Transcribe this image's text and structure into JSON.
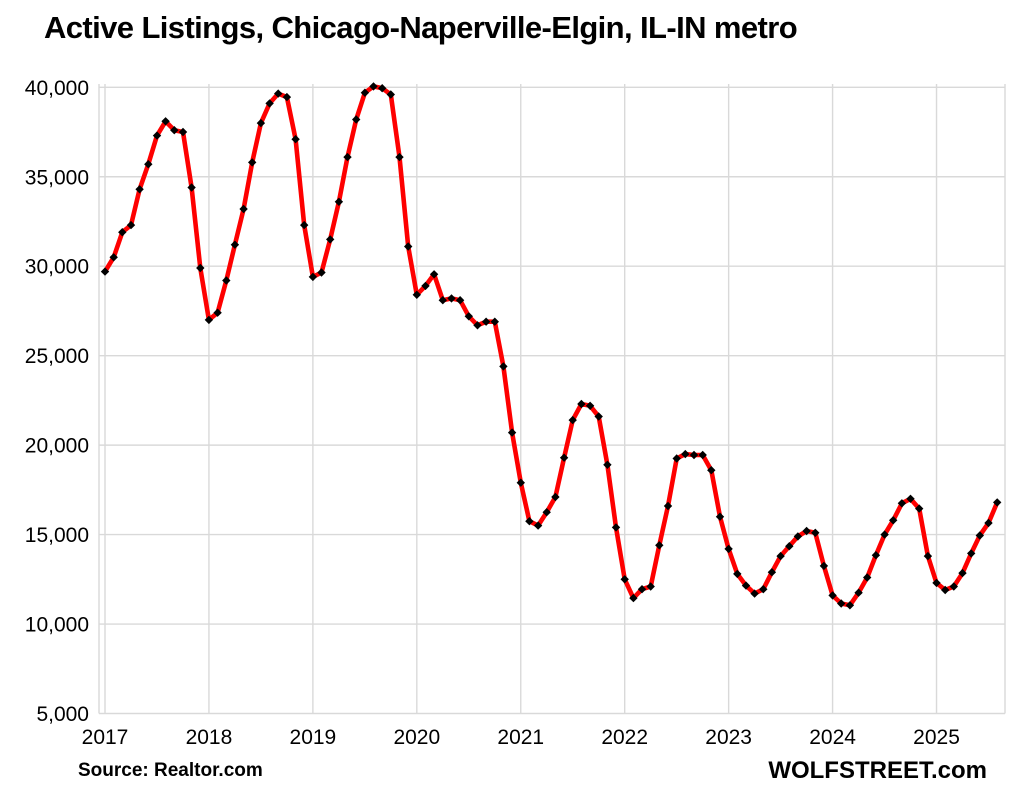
{
  "title": "Active Listings, Chicago-Naperville-Elgin, IL-IN metro",
  "source_note": "Source: Realtor.com",
  "brand": "WOLFSTREET.com",
  "colors": {
    "line": "#fe0000",
    "marker": "#000000",
    "grid": "#d9d9d9",
    "text": "#000000",
    "background": "#ffffff"
  },
  "y_axis": {
    "tick_labels": [
      "40,000",
      "35,000",
      "30,000",
      "25,000",
      "20,000",
      "15,000",
      "10,000",
      "5,000"
    ],
    "tick_values": [
      40000,
      35000,
      30000,
      25000,
      20000,
      15000,
      10000,
      5000
    ]
  },
  "x_axis": {
    "tick_labels": [
      "2017",
      "2018",
      "2019",
      "2020",
      "2021",
      "2022",
      "2023",
      "2024",
      "2025"
    ]
  },
  "chart_data": {
    "type": "line",
    "title": "Active Listings, Chicago-Naperville-Elgin, IL-IN metro",
    "xlabel": "",
    "ylabel": "",
    "ylim": [
      5000,
      40000
    ],
    "y_tick_step": 5000,
    "grid": true,
    "legend": false,
    "x_start": "2017-01",
    "x_frequency": "monthly",
    "x_end": "2025-08",
    "marker": "black-diamond",
    "series": [
      {
        "name": "Active listings",
        "color": "#fe0000",
        "values": [
          29700,
          30500,
          31900,
          32300,
          34300,
          35700,
          37300,
          38100,
          37600,
          37500,
          34400,
          29900,
          27000,
          27400,
          29200,
          31200,
          33200,
          35800,
          38000,
          39100,
          39650,
          39450,
          37100,
          32300,
          29400,
          29650,
          31500,
          33600,
          36100,
          38200,
          39700,
          40050,
          39950,
          39600,
          36100,
          31100,
          28400,
          28900,
          29550,
          28100,
          28200,
          28100,
          27200,
          26700,
          26900,
          26900,
          24400,
          20700,
          17900,
          15750,
          15500,
          16250,
          17100,
          19300,
          21400,
          22300,
          22200,
          21600,
          18900,
          15400,
          12500,
          11450,
          11950,
          12100,
          14400,
          16600,
          19250,
          19500,
          19450,
          19450,
          18600,
          16000,
          14200,
          12800,
          12150,
          11700,
          11950,
          12900,
          13800,
          14350,
          14900,
          15200,
          15100,
          13250,
          11600,
          11150,
          11050,
          11750,
          12600,
          13850,
          15000,
          15800,
          16750,
          17000,
          16450,
          13800,
          12300,
          11900,
          12100,
          12850,
          13950,
          14950,
          15650,
          16800
        ]
      }
    ]
  }
}
